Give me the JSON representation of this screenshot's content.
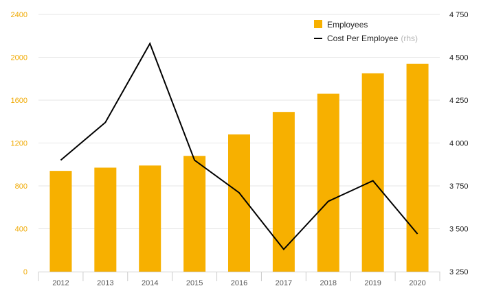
{
  "colors": {
    "bar": "#f7b000",
    "line": "#000000",
    "left_axis_text": "#f0a900",
    "right_axis_text": "#222222",
    "grid": "#e6e6e6"
  },
  "chart_data": {
    "type": "bar",
    "categories": [
      "2012",
      "2013",
      "2014",
      "2015",
      "2016",
      "2017",
      "2018",
      "2019",
      "2020"
    ],
    "series": [
      {
        "name": "Employees",
        "type": "bar",
        "axis": "left",
        "values": [
          940,
          970,
          990,
          1080,
          1280,
          1490,
          1660,
          1850,
          1940
        ]
      },
      {
        "name": "Cost Per Employee",
        "name_suffix": "(rhs)",
        "type": "line",
        "axis": "right",
        "values": [
          3900,
          4120,
          4580,
          3900,
          3710,
          3380,
          3660,
          3780,
          3470
        ]
      }
    ],
    "y_left": {
      "ylim": [
        0,
        2400
      ],
      "ticks": [
        "0",
        "400",
        "800",
        "1200",
        "1600",
        "2000",
        "2400"
      ]
    },
    "y_right": {
      "ylim": [
        3250,
        4750
      ],
      "ticks": [
        "3 250",
        "3 500",
        "3 750",
        "4 000",
        "4 250",
        "4 500",
        "4 750"
      ]
    },
    "grid": true,
    "legend_position": "top-right"
  }
}
